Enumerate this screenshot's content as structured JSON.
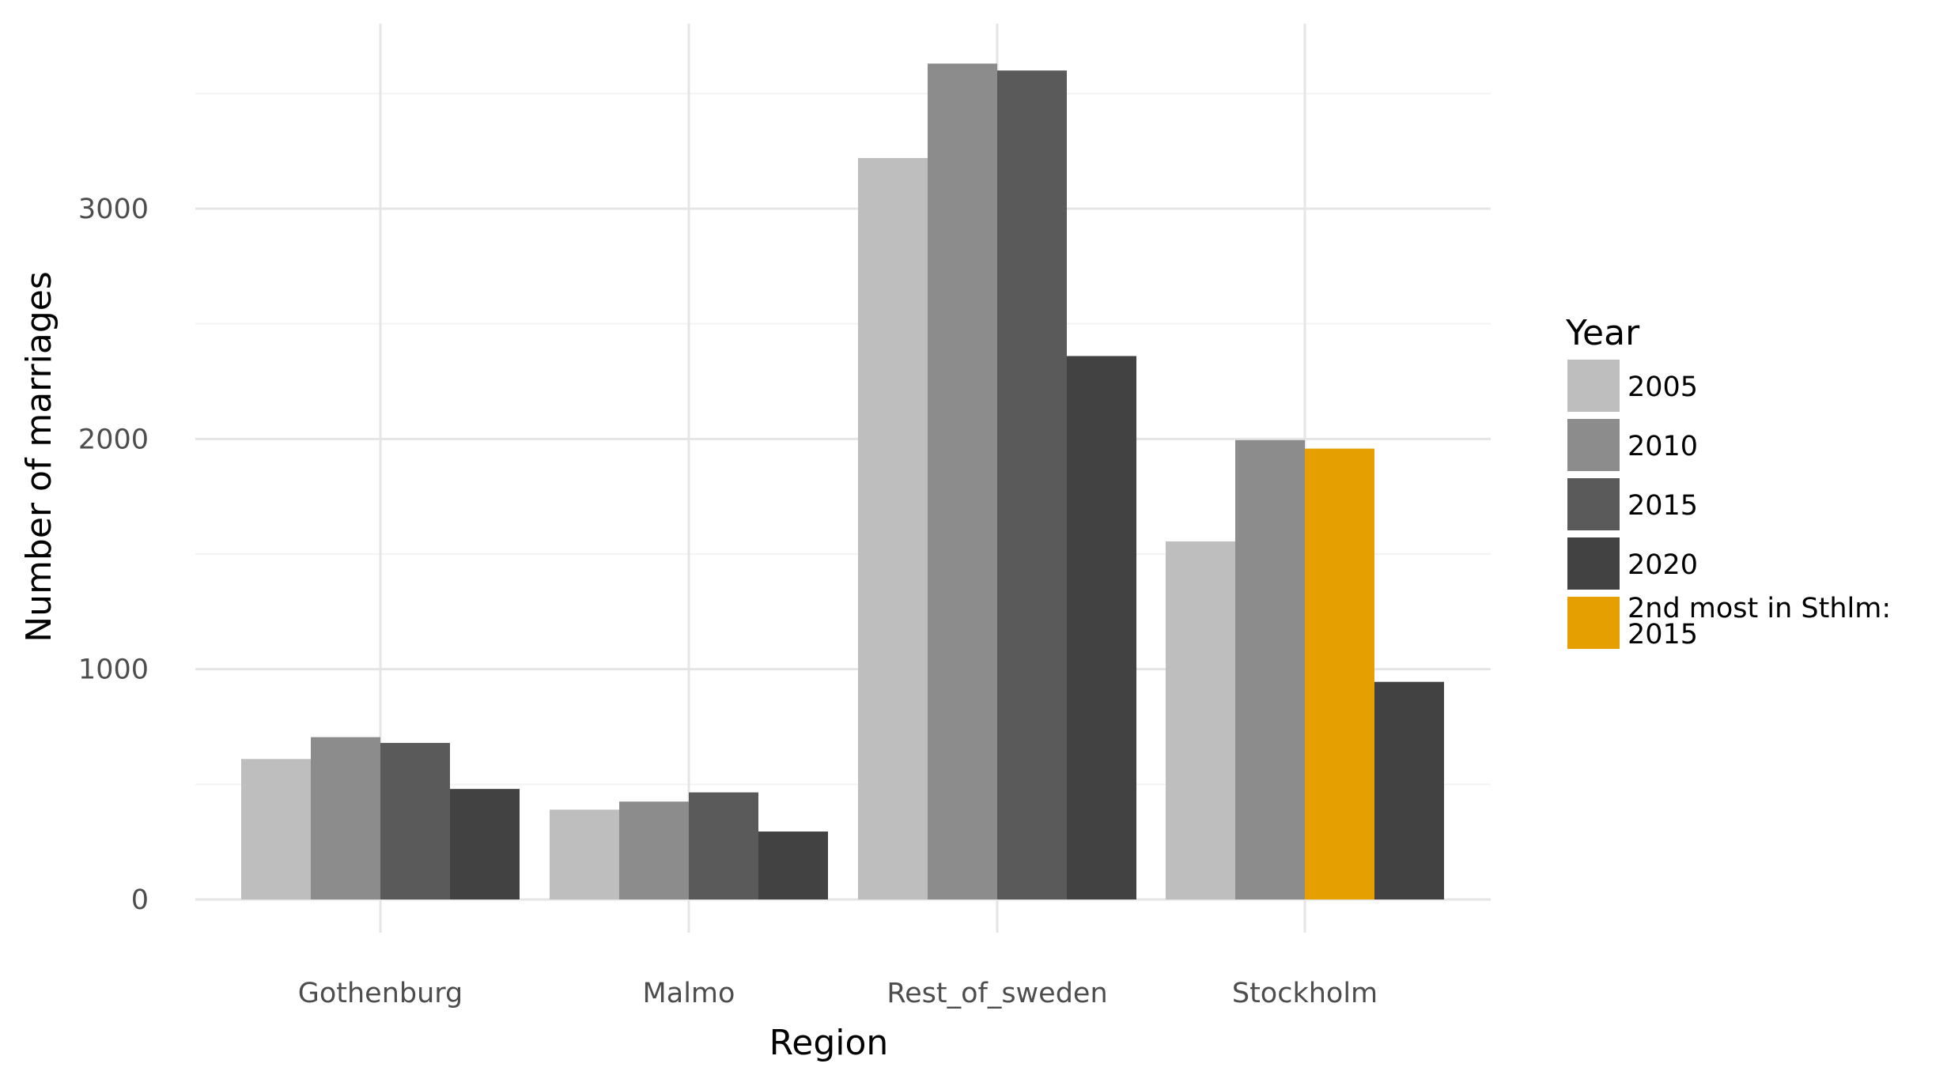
{
  "chart_data": {
    "type": "bar",
    "xlabel": "Region",
    "ylabel": "Number of marriages",
    "categories": [
      "Gothenburg",
      "Malmo",
      "Rest_of_sweden",
      "Stockholm"
    ],
    "ylim": [
      0,
      3800
    ],
    "yticks": [
      "0",
      "1000",
      "2000",
      "3000"
    ],
    "grid": true,
    "legend_placement": "right",
    "legend": {
      "title": "Year",
      "entries": [
        {
          "label": "2005",
          "color": "#bebebe"
        },
        {
          "label": "2010",
          "color": "#8c8c8c"
        },
        {
          "label": "2015",
          "color": "#5a5a5a"
        },
        {
          "label": "2020",
          "color": "#424242"
        },
        {
          "label": "2nd most in Sthlm:\n2015",
          "color": "#e69f00"
        }
      ]
    },
    "series": [
      {
        "name": "2005",
        "color": "#bebebe",
        "values": [
          610,
          390,
          3220,
          1555
        ]
      },
      {
        "name": "2010",
        "color": "#8c8c8c",
        "values": [
          705,
          425,
          3630,
          1995
        ]
      },
      {
        "name": "2015",
        "color": "#5a5a5a",
        "values": [
          680,
          465,
          3600,
          1958
        ]
      },
      {
        "name": "2020",
        "color": "#424242",
        "values": [
          480,
          295,
          2360,
          945
        ]
      }
    ],
    "highlight": {
      "category": "Stockholm",
      "series": "2015",
      "color": "#e69f00"
    }
  }
}
